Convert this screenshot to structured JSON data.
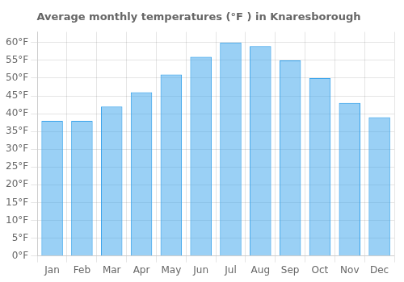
{
  "chart_data": {
    "type": "bar",
    "title": "Average monthly temperatures (°F ) in Knaresborough",
    "categories": [
      "Jan",
      "Feb",
      "Mar",
      "Apr",
      "May",
      "Jun",
      "Jul",
      "Aug",
      "Sep",
      "Oct",
      "Nov",
      "Dec"
    ],
    "values": [
      38,
      38,
      42,
      46,
      51,
      56,
      60,
      59,
      55,
      50,
      43,
      39
    ],
    "ylim": [
      0,
      63
    ],
    "yticks": [
      {
        "value": 0,
        "label": "0°F"
      },
      {
        "value": 5,
        "label": "5°F"
      },
      {
        "value": 10,
        "label": "10°F"
      },
      {
        "value": 15,
        "label": "15°F"
      },
      {
        "value": 20,
        "label": "20°F"
      },
      {
        "value": 25,
        "label": "25°F"
      },
      {
        "value": 30,
        "label": "30°F"
      },
      {
        "value": 35,
        "label": "35°F"
      },
      {
        "value": 40,
        "label": "40°F"
      },
      {
        "value": 45,
        "label": "45°F"
      },
      {
        "value": 50,
        "label": "50°F"
      },
      {
        "value": 55,
        "label": "55°F"
      },
      {
        "value": 60,
        "label": "60°F"
      }
    ],
    "grid": true
  }
}
